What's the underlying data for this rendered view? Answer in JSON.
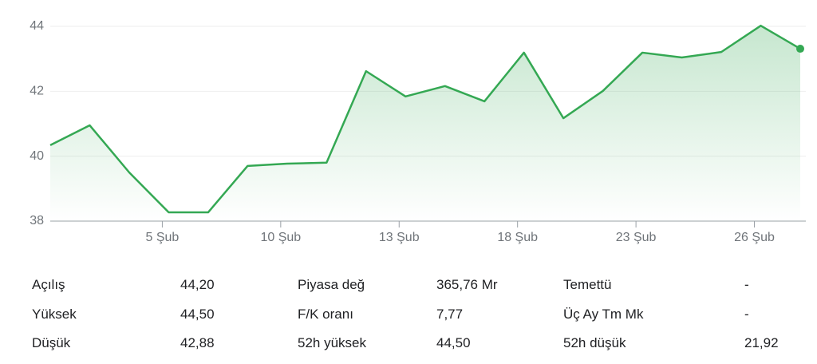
{
  "chart_data": {
    "type": "line",
    "categories": [
      null,
      null,
      null,
      "5 Şub",
      null,
      null,
      "10 Şub",
      null,
      null,
      "13 Şub",
      null,
      null,
      "18 Şub",
      null,
      null,
      "23 Şub",
      null,
      null,
      "26 Şub",
      null
    ],
    "values": [
      40.34,
      40.95,
      39.5,
      38.27,
      38.27,
      39.7,
      39.77,
      39.8,
      42.62,
      41.84,
      42.16,
      41.69,
      43.19,
      41.17,
      42.01,
      43.19,
      43.04,
      43.21,
      44.02,
      43.31
    ],
    "color": "#34a853",
    "ylim": [
      38,
      44
    ],
    "yticks": [
      38,
      40,
      42,
      44
    ],
    "grid": true
  },
  "stats": {
    "columns": [
      {
        "rows": [
          {
            "label": "Açılış",
            "value": "44,20"
          },
          {
            "label": "Yüksek",
            "value": "44,50"
          },
          {
            "label": "Düşük",
            "value": "42,88"
          }
        ]
      },
      {
        "rows": [
          {
            "label": "Piyasa değ",
            "value": "365,76 Mr"
          },
          {
            "label": "F/K oranı",
            "value": "7,77"
          },
          {
            "label": "52h yüksek",
            "value": "44,50"
          }
        ]
      },
      {
        "rows": [
          {
            "label": "Temettü",
            "value": "-"
          },
          {
            "label": "Üç Ay Tm Mk",
            "value": "-"
          },
          {
            "label": "52h düşük",
            "value": "21,92"
          }
        ]
      }
    ]
  }
}
